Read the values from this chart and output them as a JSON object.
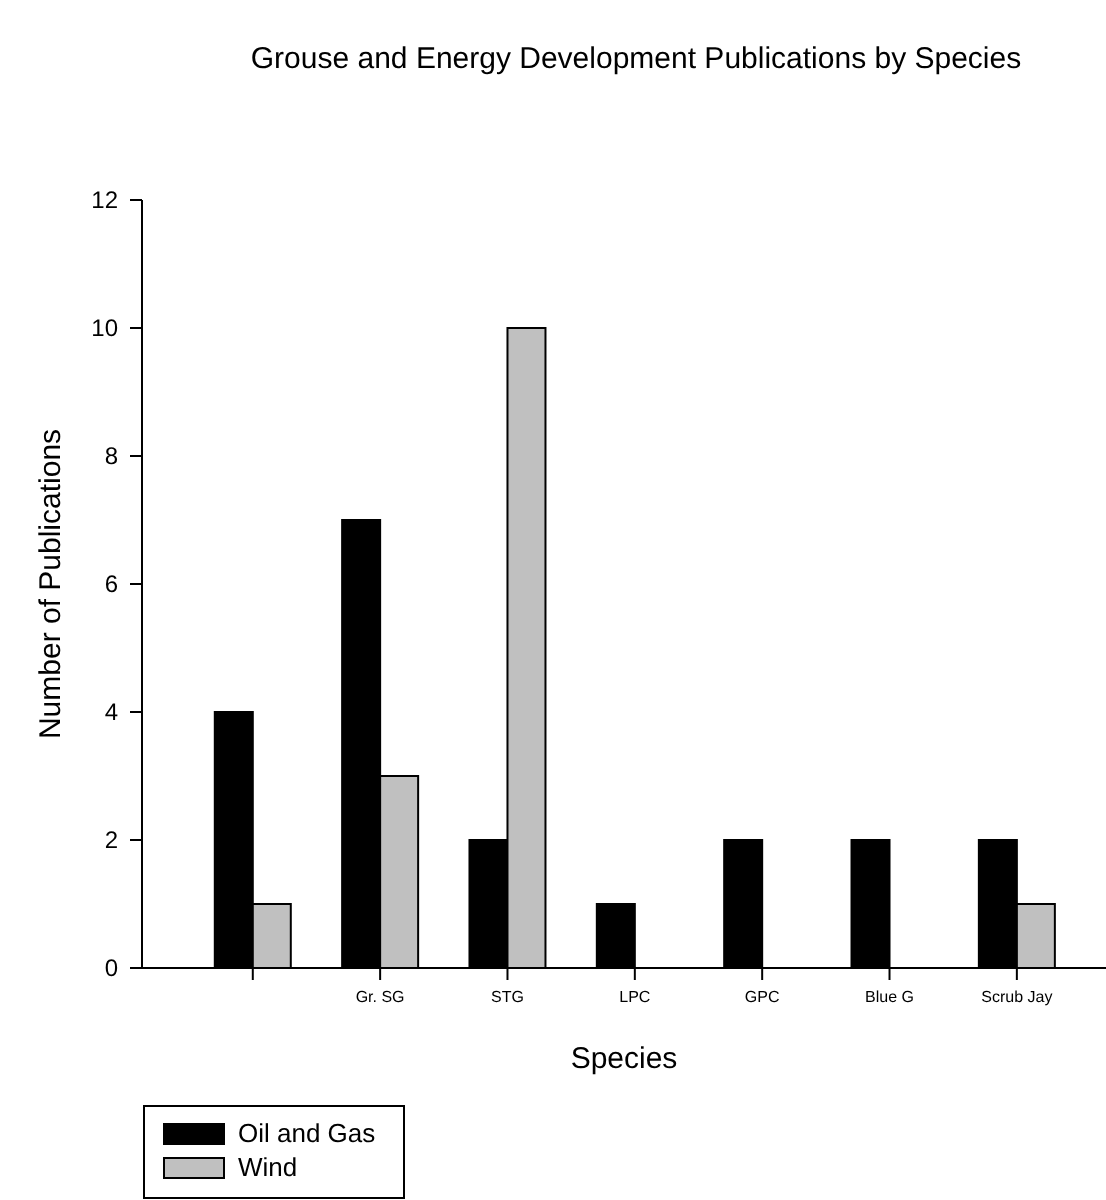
{
  "chart_data": {
    "type": "bar",
    "title": "Grouse and Energy Development Publications by Species",
    "xlabel": "Species",
    "ylabel": "Number of Publications",
    "categories": [
      null,
      "Gr. SG",
      "STG",
      "LPC",
      "GPC",
      "Blue G",
      "Scrub Jay"
    ],
    "series": [
      {
        "name": "Oil and Gas",
        "color": "#000000",
        "values": [
          4,
          7,
          2,
          1,
          2,
          2,
          2
        ]
      },
      {
        "name": "Wind",
        "color": "#c0c0c0",
        "values": [
          1,
          3,
          10,
          0,
          0,
          0,
          1
        ]
      }
    ],
    "ylim": [
      0,
      12
    ],
    "yticks": [
      0,
      2,
      4,
      6,
      8,
      10,
      12
    ],
    "grid": false,
    "legend": "bottom left"
  }
}
